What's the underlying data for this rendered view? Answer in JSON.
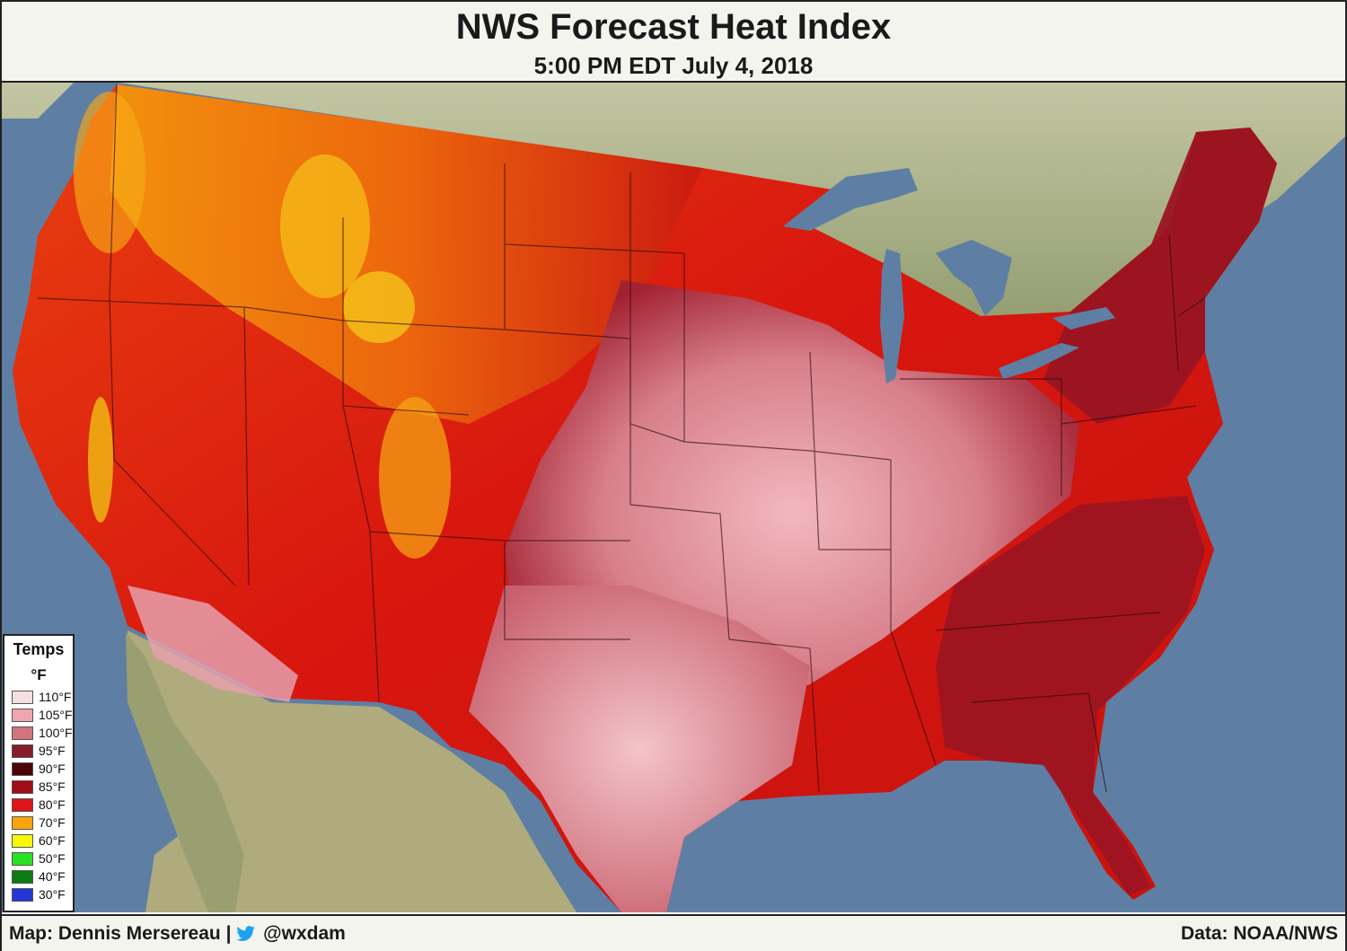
{
  "header": {
    "title": "NWS Forecast Heat Index",
    "subtitle": "5:00 PM EDT July 4, 2018"
  },
  "legend": {
    "title": "Temps",
    "unit": "°F",
    "items": [
      {
        "label": "110°F",
        "color": "#f6dfe1"
      },
      {
        "label": "105°F",
        "color": "#efa6ae"
      },
      {
        "label": "100°F",
        "color": "#d2747e"
      },
      {
        "label": "95°F",
        "color": "#851d2a"
      },
      {
        "label": "90°F",
        "color": "#4d0409"
      },
      {
        "label": "85°F",
        "color": "#a30d16"
      },
      {
        "label": "80°F",
        "color": "#dd1419"
      },
      {
        "label": "70°F",
        "color": "#f9a50a"
      },
      {
        "label": "60°F",
        "color": "#f7f70a"
      },
      {
        "label": "50°F",
        "color": "#27e123"
      },
      {
        "label": "40°F",
        "color": "#0b7c12"
      },
      {
        "label": "30°F",
        "color": "#2436d6"
      }
    ]
  },
  "footer": {
    "credit": "Map: Dennis Mersereau |",
    "handle": "@wxdam",
    "source": "Data: NOAA/NWS"
  },
  "map": {
    "water_color": "#5e7fa3",
    "land_color": "#a7a57c",
    "bird_icon": "twitter-bird-icon"
  }
}
